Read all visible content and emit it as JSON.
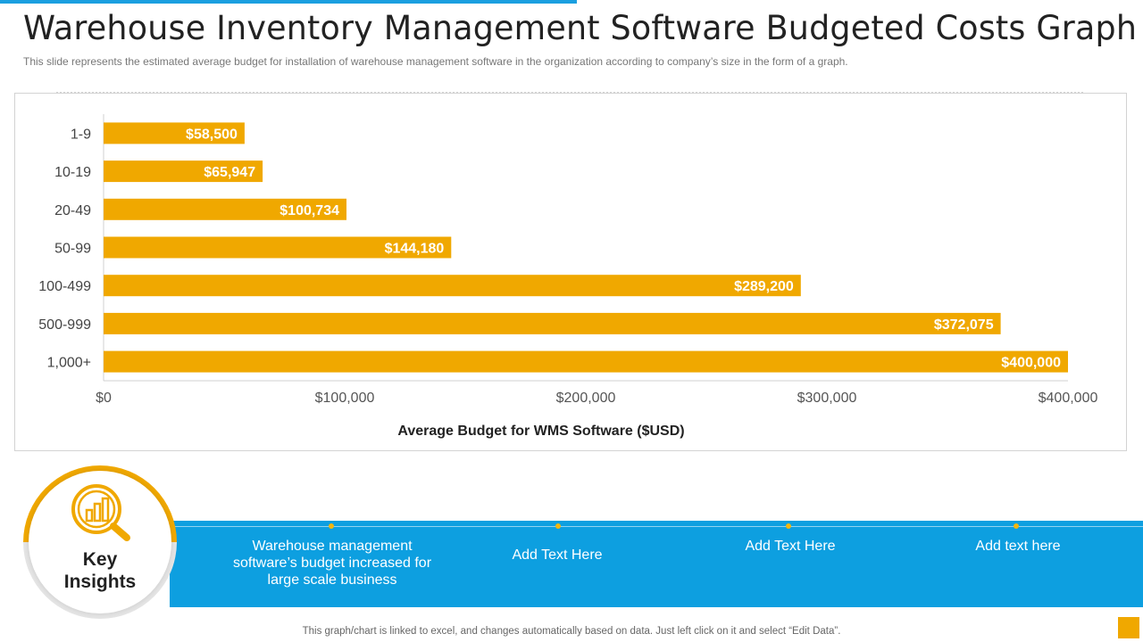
{
  "header": {
    "title": "Warehouse Inventory Management Software Budgeted Costs Graph",
    "subtitle": "This slide represents the estimated average  budget for installation of warehouse  management  software  in the organization  according to company’s size in the form  of a graph."
  },
  "colors": {
    "bar": "#f0a800",
    "band": "#0d9fe0",
    "accent": "#1a9fe0"
  },
  "chart_data": {
    "type": "bar",
    "orientation": "horizontal",
    "categories": [
      "1-9",
      "10-19",
      "20-49",
      "50-99",
      "100-499",
      "500-999",
      "1,000+"
    ],
    "values": [
      58500,
      65947,
      100734,
      144180,
      289200,
      372075,
      400000
    ],
    "data_labels": [
      "$58,500",
      "$65,947",
      "$100,734",
      "$144,180",
      "$289,200",
      "$372,075",
      "$400,000"
    ],
    "x_ticks": [
      0,
      100000,
      200000,
      300000,
      400000
    ],
    "x_tick_labels": [
      "$0",
      "$100,000",
      "$200,000",
      "$300,000",
      "$400,000"
    ],
    "xlim": [
      0,
      400000
    ],
    "title": "",
    "xlabel": "Average Budget for WMS Software ($USD)",
    "ylabel": "",
    "grid": false,
    "legend": "none"
  },
  "insights": {
    "heading": "Key Insights",
    "icon": "magnifier-chart-icon",
    "items": [
      "Warehouse management software’s budget increased for large scale business",
      "Add Text Here",
      "Add Text Here",
      "Add text here"
    ]
  },
  "footer": {
    "note": "This graph/chart is linked to excel,  and changes automatically based on data. Just left click on it and select “Edit Data”."
  }
}
